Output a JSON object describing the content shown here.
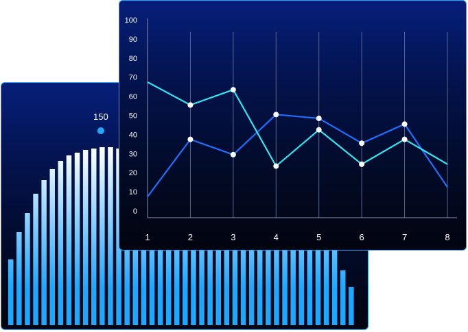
{
  "chart_data": [
    {
      "type": "bar",
      "peak_label": "150",
      "values": [
        48,
        68,
        82,
        96,
        106,
        114,
        120,
        124,
        126,
        128,
        129,
        130,
        130,
        129,
        128,
        126,
        122,
        116,
        108,
        98,
        88,
        82,
        78,
        75,
        74,
        75,
        77,
        81,
        86,
        91,
        96,
        101,
        104,
        106,
        105,
        102,
        95,
        84,
        70,
        56,
        40,
        28
      ],
      "peak_marker_color": "#1ea7ff",
      "bar_gradient": [
        "#ffffff",
        "#1ea7ff"
      ]
    },
    {
      "type": "line",
      "x": [
        1,
        2,
        3,
        4,
        5,
        6,
        7,
        8
      ],
      "y_ticks": [
        0,
        10,
        20,
        30,
        40,
        50,
        60,
        70,
        80,
        90,
        100
      ],
      "ylim": [
        0,
        100
      ],
      "grid": "vertical",
      "series": [
        {
          "color": "#1f6fff",
          "values": [
            11,
            41,
            33,
            54,
            52,
            39,
            49,
            16
          ]
        },
        {
          "color": "#2ee6f2",
          "values": [
            71,
            59,
            67,
            27,
            46,
            28,
            41,
            28
          ]
        }
      ]
    }
  ]
}
